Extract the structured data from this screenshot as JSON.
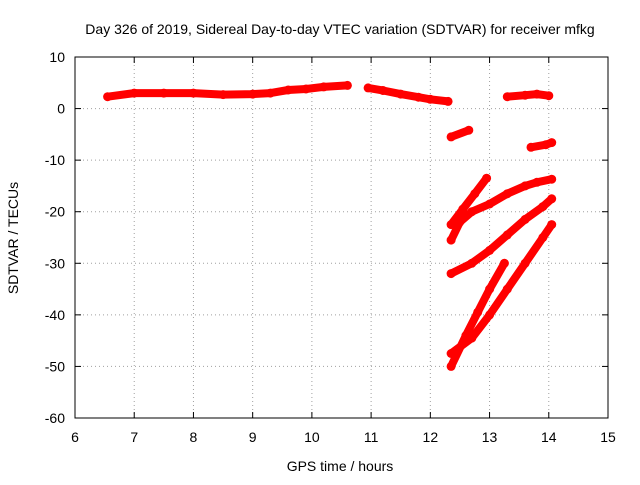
{
  "chart_data": {
    "type": "line",
    "title": "Day 326 of 2019, Sidereal Day-to-day VTEC variation (SDTVAR) for receiver mfkg",
    "xlabel": "GPS time / hours",
    "ylabel": "SDTVAR / TECUs",
    "xlim": [
      6,
      15
    ],
    "ylim": [
      -60,
      10
    ],
    "xticks": [
      6,
      7,
      8,
      9,
      10,
      11,
      12,
      13,
      14,
      15
    ],
    "yticks": [
      10,
      0,
      -10,
      -20,
      -30,
      -40,
      -50,
      -60
    ],
    "grid": true,
    "series_color": "#ff0000",
    "series": [
      {
        "x": [
          6.55,
          7.0,
          7.5,
          8.0,
          8.5,
          9.0,
          9.3,
          9.6,
          9.9,
          10.2,
          10.6
        ],
        "y": [
          2.3,
          3.0,
          3.0,
          3.0,
          2.7,
          2.8,
          3.0,
          3.6,
          3.8,
          4.2,
          4.5
        ]
      },
      {
        "x": [
          10.95,
          11.2,
          11.5,
          11.8,
          12.0,
          12.3
        ],
        "y": [
          4.0,
          3.5,
          2.8,
          2.2,
          1.8,
          1.4
        ]
      },
      {
        "x": [
          12.35,
          12.65
        ],
        "y": [
          -5.5,
          -4.2
        ]
      },
      {
        "x": [
          13.3,
          13.6,
          13.8,
          14.0
        ],
        "y": [
          2.3,
          2.6,
          2.8,
          2.5
        ]
      },
      {
        "x": [
          13.7,
          13.95,
          14.05
        ],
        "y": [
          -7.5,
          -7.0,
          -6.6
        ]
      },
      {
        "x": [
          12.35,
          12.55,
          12.75,
          12.95
        ],
        "y": [
          -22.5,
          -19.5,
          -16.5,
          -13.5
        ]
      },
      {
        "x": [
          12.35,
          12.5,
          12.7,
          13.0,
          13.3,
          13.6,
          13.8,
          14.05
        ],
        "y": [
          -25.5,
          -22.0,
          -20.0,
          -18.5,
          -16.5,
          -15.0,
          -14.3,
          -13.7
        ]
      },
      {
        "x": [
          12.35,
          12.7,
          13.0,
          13.3,
          13.6,
          13.9,
          14.05
        ],
        "y": [
          -32.0,
          -30.0,
          -27.5,
          -24.5,
          -21.5,
          -19.0,
          -17.5
        ]
      },
      {
        "x": [
          12.35,
          12.6,
          12.8,
          13.0,
          13.25
        ],
        "y": [
          -50.0,
          -44.0,
          -39.5,
          -35.0,
          -30.0
        ]
      },
      {
        "x": [
          12.35,
          12.7,
          13.0,
          13.3,
          13.6,
          13.9,
          14.05
        ],
        "y": [
          -47.5,
          -44.5,
          -40.0,
          -35.0,
          -30.0,
          -25.0,
          -22.5
        ]
      }
    ]
  }
}
